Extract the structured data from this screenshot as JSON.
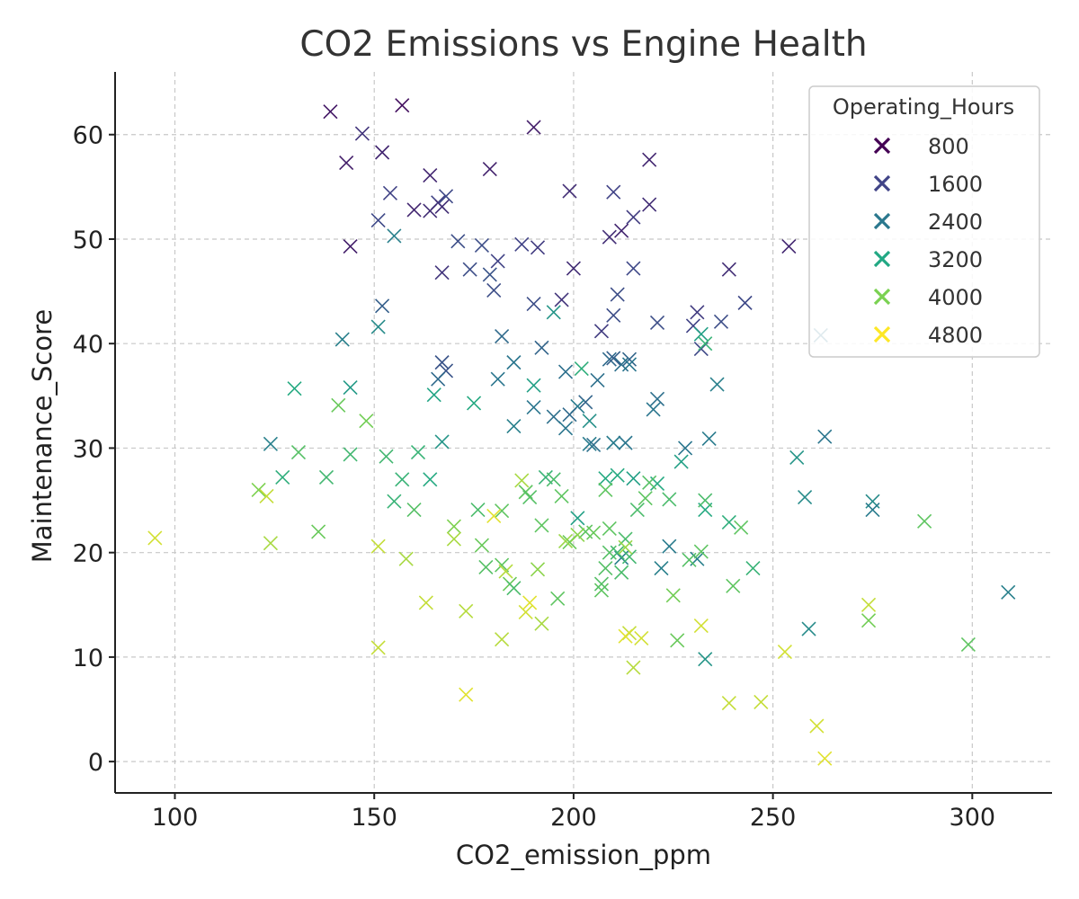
{
  "chart_data": {
    "type": "scatter",
    "title": "CO2 Emissions vs Engine Health",
    "xlabel": "CO2_emission_ppm",
    "ylabel": "Maintenance_Score",
    "xlim": [
      85,
      320
    ],
    "ylim": [
      -3,
      66
    ],
    "xticks": [
      100,
      150,
      200,
      250,
      300
    ],
    "yticks": [
      0,
      10,
      20,
      30,
      40,
      50,
      60
    ],
    "xtick_labels": [
      "100",
      "150",
      "200",
      "250",
      "300"
    ],
    "ytick_labels": [
      "0",
      "10",
      "20",
      "30",
      "40",
      "50",
      "60"
    ],
    "grid": true,
    "marker": "x",
    "legend": {
      "title": "Operating_Hours",
      "placement": "top-right",
      "entries": [
        {
          "label": "800",
          "color": "#440154"
        },
        {
          "label": "1600",
          "color": "#414487"
        },
        {
          "label": "2400",
          "color": "#2a788e"
        },
        {
          "label": "3200",
          "color": "#22a884"
        },
        {
          "label": "4000",
          "color": "#7ad151"
        },
        {
          "label": "4800",
          "color": "#fde725"
        }
      ]
    },
    "color_scale": {
      "min_hours": 400,
      "max_hours": 5000,
      "colormap": "viridis"
    },
    "points": [
      [
        139,
        62.2,
        700
      ],
      [
        157,
        62.8,
        600
      ],
      [
        147,
        60.1,
        1100
      ],
      [
        190,
        60.7,
        800
      ],
      [
        152,
        58.3,
        900
      ],
      [
        143,
        57.3,
        800
      ],
      [
        179,
        56.7,
        850
      ],
      [
        219,
        57.6,
        900
      ],
      [
        164,
        56.1,
        900
      ],
      [
        154,
        54.4,
        1300
      ],
      [
        199,
        54.6,
        1000
      ],
      [
        210,
        54.5,
        1300
      ],
      [
        168,
        54.1,
        1400
      ],
      [
        166,
        53.5,
        1300
      ],
      [
        160,
        52.8,
        900
      ],
      [
        167,
        53.1,
        1000
      ],
      [
        164,
        52.7,
        1000
      ],
      [
        219,
        53.3,
        1000
      ],
      [
        215,
        52.1,
        1200
      ],
      [
        151,
        51.8,
        1400
      ],
      [
        212,
        50.8,
        900
      ],
      [
        209,
        50.2,
        1000
      ],
      [
        171,
        49.8,
        1500
      ],
      [
        177,
        49.4,
        1500
      ],
      [
        187,
        49.5,
        1300
      ],
      [
        191,
        49.2,
        1200
      ],
      [
        144,
        49.3,
        800
      ],
      [
        254,
        49.3,
        900
      ],
      [
        181,
        47.9,
        1300
      ],
      [
        200,
        47.2,
        1000
      ],
      [
        215,
        47.2,
        1400
      ],
      [
        239,
        47.1,
        1000
      ],
      [
        167,
        46.8,
        1100
      ],
      [
        174,
        47.1,
        1500
      ],
      [
        179,
        46.6,
        1600
      ],
      [
        180,
        45.1,
        1500
      ],
      [
        211,
        44.7,
        1500
      ],
      [
        197,
        44.2,
        1100
      ],
      [
        243,
        43.9,
        1400
      ],
      [
        152,
        43.6,
        1800
      ],
      [
        190,
        43.8,
        1500
      ],
      [
        231,
        43.0,
        1200
      ],
      [
        230,
        41.7,
        1300
      ],
      [
        210,
        42.7,
        1500
      ],
      [
        221,
        42.0,
        1500
      ],
      [
        237,
        42.1,
        1500
      ],
      [
        207,
        41.2,
        1200
      ],
      [
        232,
        39.5,
        1400
      ],
      [
        155,
        50.3,
        2400
      ],
      [
        142,
        40.4,
        2400
      ],
      [
        151,
        41.6,
        2600
      ],
      [
        182,
        40.7,
        2000
      ],
      [
        192,
        39.6,
        1900
      ],
      [
        214,
        38.5,
        1900
      ],
      [
        212,
        38.0,
        2100
      ],
      [
        209,
        38.5,
        2000
      ],
      [
        210,
        38.6,
        1800
      ],
      [
        185,
        38.2,
        2200
      ],
      [
        167,
        38.2,
        1600
      ],
      [
        168,
        37.4,
        1600
      ],
      [
        166,
        36.6,
        2000
      ],
      [
        181,
        36.6,
        2200
      ],
      [
        198,
        37.3,
        2100
      ],
      [
        206,
        36.5,
        2100
      ],
      [
        236,
        36.1,
        2400
      ],
      [
        203,
        34.4,
        1900
      ],
      [
        201,
        34.0,
        2300
      ],
      [
        190,
        33.9,
        2200
      ],
      [
        199,
        33.2,
        2000
      ],
      [
        195,
        33.0,
        2100
      ],
      [
        198,
        31.9,
        2200
      ],
      [
        185,
        32.1,
        2400
      ],
      [
        234,
        30.9,
        2300
      ],
      [
        263,
        31.1,
        2200
      ],
      [
        204,
        30.4,
        2300
      ],
      [
        205,
        30.3,
        2100
      ],
      [
        210,
        30.5,
        2300
      ],
      [
        213,
        30.5,
        2200
      ],
      [
        228,
        30.0,
        2200
      ],
      [
        124,
        30.4,
        2400
      ],
      [
        167,
        30.6,
        2800
      ],
      [
        256,
        29.1,
        2800
      ],
      [
        227,
        28.7,
        3000
      ],
      [
        258,
        25.3,
        2600
      ],
      [
        275,
        24.9,
        2600
      ],
      [
        275,
        24.1,
        2300
      ],
      [
        309,
        16.2,
        2400
      ],
      [
        221,
        34.7,
        2100
      ],
      [
        220,
        33.7,
        2200
      ],
      [
        259,
        12.7,
        2600
      ],
      [
        233,
        9.8,
        2800
      ],
      [
        222,
        18.5,
        2400
      ],
      [
        231,
        19.4,
        2400
      ],
      [
        224,
        20.6,
        2300
      ],
      [
        212,
        19.5,
        2400
      ],
      [
        201,
        23.3,
        3000
      ],
      [
        214,
        38.0,
        2200
      ],
      [
        204,
        32.6,
        2700
      ],
      [
        262,
        40.8,
        2200
      ],
      [
        130,
        35.7,
        3200
      ],
      [
        144,
        35.8,
        2900
      ],
      [
        165,
        35.1,
        3100
      ],
      [
        175,
        34.3,
        3200
      ],
      [
        190,
        36.0,
        3000
      ],
      [
        195,
        43.0,
        2800
      ],
      [
        202,
        37.6,
        3300
      ],
      [
        232,
        40.9,
        3000
      ],
      [
        233,
        40.0,
        3400
      ],
      [
        141,
        34.1,
        3900
      ],
      [
        148,
        32.6,
        4000
      ],
      [
        131,
        29.6,
        3700
      ],
      [
        144,
        29.4,
        3500
      ],
      [
        153,
        29.2,
        3500
      ],
      [
        161,
        29.6,
        3400
      ],
      [
        127,
        27.2,
        3300
      ],
      [
        138,
        27.2,
        3500
      ],
      [
        157,
        27.0,
        3400
      ],
      [
        164,
        27.0,
        3200
      ],
      [
        193,
        27.2,
        3400
      ],
      [
        195,
        27.0,
        3600
      ],
      [
        208,
        27.1,
        3200
      ],
      [
        211,
        27.4,
        3200
      ],
      [
        215,
        27.1,
        3000
      ],
      [
        221,
        26.6,
        3200
      ],
      [
        216,
        24.1,
        3600
      ],
      [
        224,
        25.1,
        3600
      ],
      [
        233,
        24.1,
        3200
      ],
      [
        233,
        25.0,
        3600
      ],
      [
        239,
        22.9,
        3300
      ],
      [
        242,
        22.4,
        3800
      ],
      [
        245,
        18.5,
        3400
      ],
      [
        155,
        24.9,
        3400
      ],
      [
        160,
        24.1,
        3700
      ],
      [
        176,
        24.1,
        3600
      ],
      [
        182,
        24.0,
        3800
      ],
      [
        188,
        25.8,
        3800
      ],
      [
        189,
        25.3,
        3700
      ],
      [
        197,
        25.4,
        3800
      ],
      [
        208,
        26.0,
        3800
      ],
      [
        209,
        22.3,
        3800
      ],
      [
        213,
        21.3,
        3600
      ],
      [
        218,
        25.2,
        3800
      ],
      [
        203,
        22.0,
        3800
      ],
      [
        199,
        21.0,
        3900
      ],
      [
        177,
        20.7,
        3900
      ],
      [
        178,
        18.6,
        3700
      ],
      [
        182,
        18.8,
        3800
      ],
      [
        184,
        17.0,
        3900
      ],
      [
        185,
        16.6,
        3600
      ],
      [
        196,
        15.6,
        3800
      ],
      [
        207,
        16.4,
        3800
      ],
      [
        207,
        17.0,
        3700
      ],
      [
        209,
        20.0,
        3700
      ],
      [
        211,
        20.0,
        3500
      ],
      [
        214,
        19.6,
        3500
      ],
      [
        229,
        19.3,
        3700
      ],
      [
        232,
        20.1,
        3800
      ],
      [
        240,
        16.8,
        3800
      ],
      [
        225,
        15.9,
        4000
      ],
      [
        226,
        11.6,
        3900
      ],
      [
        274,
        13.5,
        4000
      ],
      [
        288,
        23.0,
        3800
      ],
      [
        299,
        11.2,
        3800
      ],
      [
        191,
        18.4,
        4200
      ],
      [
        205,
        21.9,
        3900
      ],
      [
        212,
        18.1,
        3600
      ],
      [
        208,
        18.5,
        3700
      ],
      [
        219,
        26.7,
        3700
      ],
      [
        192,
        22.6,
        3800
      ],
      [
        121,
        26.0,
        4100
      ],
      [
        136,
        22.0,
        3900
      ],
      [
        170,
        22.5,
        4100
      ],
      [
        187,
        26.9,
        4400
      ],
      [
        95,
        21.4,
        4700
      ],
      [
        123,
        25.4,
        4600
      ],
      [
        124,
        20.9,
        4400
      ],
      [
        151,
        20.6,
        4600
      ],
      [
        158,
        19.4,
        4400
      ],
      [
        151,
        10.9,
        4600
      ],
      [
        163,
        15.2,
        4600
      ],
      [
        170,
        21.3,
        4400
      ],
      [
        173,
        14.4,
        4500
      ],
      [
        173,
        6.4,
        4800
      ],
      [
        180,
        23.5,
        4800
      ],
      [
        182,
        11.7,
        4500
      ],
      [
        183,
        18.2,
        4500
      ],
      [
        188,
        14.3,
        4700
      ],
      [
        189,
        15.2,
        4800
      ],
      [
        192,
        13.2,
        4400
      ],
      [
        198,
        21.1,
        4300
      ],
      [
        201,
        21.7,
        4200
      ],
      [
        213,
        20.5,
        4300
      ],
      [
        214,
        12.3,
        4600
      ],
      [
        215,
        9.0,
        4500
      ],
      [
        217,
        11.8,
        4700
      ],
      [
        213,
        12.0,
        4800
      ],
      [
        232,
        13.0,
        4700
      ],
      [
        239,
        5.6,
        4600
      ],
      [
        247,
        5.7,
        4600
      ],
      [
        253,
        10.5,
        4700
      ],
      [
        261,
        3.4,
        4700
      ],
      [
        263,
        0.3,
        4800
      ],
      [
        274,
        15.0,
        4600
      ]
    ]
  }
}
